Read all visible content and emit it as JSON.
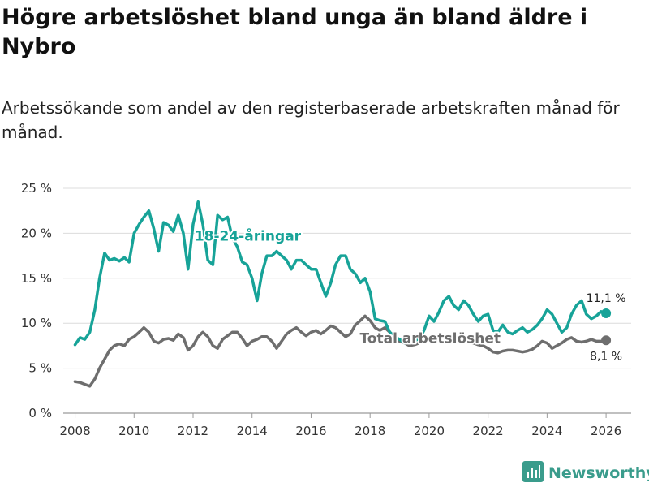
{
  "title": "Högre arbetslöshet bland unga än bland äldre i Nybro",
  "subtitle": "Arbetssökande som andel av den registerbaserade arbetskraften månad för månad.",
  "brand": "Newsworthy",
  "colors": {
    "youth": "#17a398",
    "total": "#6e6e6e",
    "grid": "#dcdcdc",
    "brand": "#3a9c8c"
  },
  "chart_data": {
    "type": "line",
    "title": "Högre arbetslöshet bland unga än bland äldre i Nybro",
    "xlabel": "",
    "ylabel": "",
    "xlim": [
      2007.6,
      2026.85
    ],
    "ylim": [
      0,
      25
    ],
    "x_ticks": [
      "2008",
      "2010",
      "2012",
      "2014",
      "2016",
      "2018",
      "2020",
      "2022",
      "2024",
      "2026"
    ],
    "y_ticks": [
      "0 %",
      "5 %",
      "10 %",
      "15 %",
      "20 %",
      "25 %"
    ],
    "grid": true,
    "series": [
      {
        "name": "18-24-åringar",
        "label": "18-24-åringar",
        "end_label": "11,1 %",
        "x": [
          2008.0,
          2008.17,
          2008.33,
          2008.5,
          2008.67,
          2008.83,
          2009.0,
          2009.17,
          2009.33,
          2009.5,
          2009.67,
          2009.83,
          2010.0,
          2010.17,
          2010.33,
          2010.5,
          2010.67,
          2010.83,
          2011.0,
          2011.17,
          2011.33,
          2011.5,
          2011.67,
          2011.83,
          2012.0,
          2012.17,
          2012.33,
          2012.5,
          2012.67,
          2012.83,
          2013.0,
          2013.17,
          2013.33,
          2013.5,
          2013.67,
          2013.83,
          2014.0,
          2014.17,
          2014.33,
          2014.5,
          2014.67,
          2014.83,
          2015.0,
          2015.17,
          2015.33,
          2015.5,
          2015.67,
          2015.83,
          2016.0,
          2016.17,
          2016.33,
          2016.5,
          2016.67,
          2016.83,
          2017.0,
          2017.17,
          2017.33,
          2017.5,
          2017.67,
          2017.83,
          2018.0,
          2018.17,
          2018.33,
          2018.5,
          2018.67,
          2018.83,
          2019.0,
          2019.17,
          2019.33,
          2019.5,
          2019.67,
          2019.83,
          2020.0,
          2020.17,
          2020.33,
          2020.5,
          2020.67,
          2020.83,
          2021.0,
          2021.17,
          2021.33,
          2021.5,
          2021.67,
          2021.83,
          2022.0,
          2022.17,
          2022.33,
          2022.5,
          2022.67,
          2022.83,
          2023.0,
          2023.17,
          2023.33,
          2023.5,
          2023.67,
          2023.83,
          2024.0,
          2024.17,
          2024.33,
          2024.5,
          2024.67,
          2024.83,
          2025.0,
          2025.17,
          2025.33,
          2025.5,
          2025.67,
          2025.83,
          2026.0
        ],
        "values": [
          7.6,
          8.4,
          8.2,
          9.0,
          11.5,
          15.0,
          17.8,
          17.0,
          17.2,
          16.9,
          17.3,
          16.8,
          20.0,
          21.0,
          21.8,
          22.5,
          20.5,
          18.0,
          21.2,
          20.9,
          20.2,
          22.0,
          20.0,
          16.0,
          21.0,
          23.5,
          21.0,
          17.0,
          16.5,
          22.0,
          21.5,
          21.8,
          19.5,
          18.5,
          16.8,
          16.5,
          15.0,
          12.5,
          15.5,
          17.5,
          17.5,
          18.0,
          17.5,
          17.0,
          16.0,
          17.0,
          17.0,
          16.5,
          16.0,
          16.0,
          14.5,
          13.0,
          14.5,
          16.5,
          17.5,
          17.5,
          16.0,
          15.5,
          14.5,
          15.0,
          13.5,
          10.5,
          10.3,
          10.2,
          9.0,
          8.5,
          8.2,
          7.8,
          7.9,
          8.0,
          8.3,
          9.2,
          10.8,
          10.2,
          11.2,
          12.5,
          13.0,
          12.0,
          11.5,
          12.5,
          12.0,
          11.0,
          10.2,
          10.8,
          11.0,
          9.2,
          9.0,
          9.8,
          9.0,
          8.8,
          9.2,
          9.5,
          9.0,
          9.3,
          9.8,
          10.5,
          11.5,
          11.0,
          10.0,
          9.0,
          9.5,
          11.0,
          12.0,
          12.5,
          11.0,
          10.5,
          10.8,
          11.3,
          11.1
        ]
      },
      {
        "name": "Total arbetslöshet",
        "label": "Total arbetslöshet",
        "end_label": "8,1 %",
        "x": [
          2008.0,
          2008.17,
          2008.33,
          2008.5,
          2008.67,
          2008.83,
          2009.0,
          2009.17,
          2009.33,
          2009.5,
          2009.67,
          2009.83,
          2010.0,
          2010.17,
          2010.33,
          2010.5,
          2010.67,
          2010.83,
          2011.0,
          2011.17,
          2011.33,
          2011.5,
          2011.67,
          2011.83,
          2012.0,
          2012.17,
          2012.33,
          2012.5,
          2012.67,
          2012.83,
          2013.0,
          2013.17,
          2013.33,
          2013.5,
          2013.67,
          2013.83,
          2014.0,
          2014.17,
          2014.33,
          2014.5,
          2014.67,
          2014.83,
          2015.0,
          2015.17,
          2015.33,
          2015.5,
          2015.67,
          2015.83,
          2016.0,
          2016.17,
          2016.33,
          2016.5,
          2016.67,
          2016.83,
          2017.0,
          2017.17,
          2017.33,
          2017.5,
          2017.67,
          2017.83,
          2018.0,
          2018.17,
          2018.33,
          2018.5,
          2018.67,
          2018.83,
          2019.0,
          2019.17,
          2019.33,
          2019.5,
          2019.67,
          2019.83,
          2020.0,
          2020.17,
          2020.33,
          2020.5,
          2020.67,
          2020.83,
          2021.0,
          2021.17,
          2021.33,
          2021.5,
          2021.67,
          2021.83,
          2022.0,
          2022.17,
          2022.33,
          2022.5,
          2022.67,
          2022.83,
          2023.0,
          2023.17,
          2023.33,
          2023.5,
          2023.67,
          2023.83,
          2024.0,
          2024.17,
          2024.33,
          2024.5,
          2024.67,
          2024.83,
          2025.0,
          2025.17,
          2025.33,
          2025.5,
          2025.67,
          2025.83,
          2026.0
        ],
        "values": [
          3.5,
          3.4,
          3.2,
          3.0,
          3.8,
          5.0,
          6.0,
          7.0,
          7.5,
          7.7,
          7.5,
          8.2,
          8.5,
          9.0,
          9.5,
          9.0,
          8.0,
          7.8,
          8.2,
          8.3,
          8.1,
          8.8,
          8.4,
          7.0,
          7.5,
          8.5,
          9.0,
          8.5,
          7.5,
          7.2,
          8.2,
          8.6,
          9.0,
          9.0,
          8.3,
          7.5,
          8.0,
          8.2,
          8.5,
          8.5,
          8.0,
          7.2,
          8.0,
          8.8,
          9.2,
          9.5,
          9.0,
          8.6,
          9.0,
          9.2,
          8.8,
          9.2,
          9.7,
          9.5,
          9.0,
          8.5,
          8.8,
          9.8,
          10.3,
          10.8,
          10.3,
          9.5,
          9.2,
          9.5,
          9.0,
          8.5,
          8.0,
          7.8,
          7.5,
          7.6,
          7.8,
          8.0,
          8.3,
          8.5,
          8.6,
          8.5,
          8.4,
          8.3,
          8.2,
          8.0,
          7.9,
          7.8,
          7.6,
          7.5,
          7.2,
          6.8,
          6.7,
          6.9,
          7.0,
          7.0,
          6.9,
          6.8,
          6.9,
          7.1,
          7.5,
          8.0,
          7.8,
          7.2,
          7.5,
          7.8,
          8.2,
          8.4,
          8.0,
          7.9,
          8.0,
          8.2,
          8.0,
          8.0,
          8.1
        ]
      }
    ]
  }
}
